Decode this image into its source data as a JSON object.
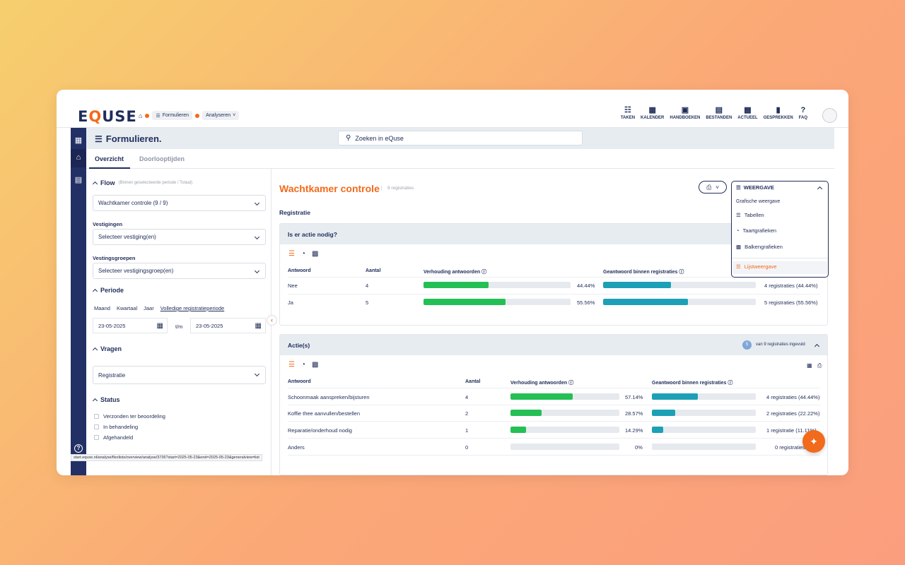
{
  "brand": {
    "logo_left": "E",
    "logo_q": "Q",
    "logo_right": "USE"
  },
  "breadcrumb": {
    "home_icon": "home-icon",
    "formulieren": "Formulieren",
    "analyseren": "Analyseren"
  },
  "topnav": [
    {
      "label": "TAKEN",
      "icon": "clipboard-icon"
    },
    {
      "label": "KALENDER",
      "icon": "calendar-icon"
    },
    {
      "label": "HANDBOEKEN",
      "icon": "book-icon"
    },
    {
      "label": "BESTANDEN",
      "icon": "archive-icon"
    },
    {
      "label": "ACTUEEL",
      "icon": "news-icon"
    },
    {
      "label": "GESPREKKEN",
      "icon": "chat-icon"
    },
    {
      "label": "FAQ",
      "icon": "question-icon"
    }
  ],
  "header": {
    "title": "Formulieren.",
    "search_placeholder": "Zoeken in eQuse"
  },
  "tabs": [
    "Overzicht",
    "Doorlooptijden"
  ],
  "filters": {
    "flow_title": "Flow",
    "flow_sub": "(Binnen geselecteerde periode / Totaal)",
    "flow_value": "Wachtkamer controle (9 / 9)",
    "vestigingen_label": "Vestigingen",
    "vestigingen_value": "Selecteer vestiging(en)",
    "groepen_label": "Vestingsgroepen",
    "groepen_value": "Selecteer vestigingsgroep(en)",
    "periode_title": "Periode",
    "periode_opts": [
      "Maand",
      "Kwartaal",
      "Jaar",
      "Volledige registratieperiode"
    ],
    "date_from": "23-05-2025",
    "date_sep": "t/m",
    "date_to": "23-05-2025",
    "vragen_title": "Vragen",
    "vragen_value": "Registratie",
    "status_title": "Status",
    "status_opts": [
      "Verzonden ter beoordeling",
      "In behandeling",
      "Afgehandeld"
    ]
  },
  "statusbar": "start.equse.nl/analyse/flexlists/overview/analyse/3736?start=2025-05-23&end=2025-05-23&generalview=list",
  "main": {
    "title": "Wachtkamer controle",
    "count": "9 registraties",
    "section": "Registratie",
    "weergave_label": "WEERGAVE",
    "dropdown": {
      "heading": "Grafische weergave",
      "items": [
        "Tabellen",
        "Taartgrafieken",
        "Balkengrafieken",
        "Lijstweergave"
      ]
    },
    "q1": {
      "title": "Is er actie nodig?",
      "headers": [
        "Antwoord",
        "Aantal",
        "Verhouding antwoorden",
        "Geantwoord binnen registraties"
      ],
      "rows": [
        {
          "answer": "Nee",
          "count": "4",
          "pct": "44.44%",
          "ratio": 0.4444,
          "reg": "4 registraties (44.44%)"
        },
        {
          "answer": "Ja",
          "count": "5",
          "pct": "55.56%",
          "ratio": 0.5556,
          "reg": "5 registraties (55.56%)"
        }
      ]
    },
    "q2": {
      "title": "Actie(s)",
      "badge": "5",
      "badge_text": "van 9 registraties ingevuld",
      "headers": [
        "Antwoord",
        "Aantal",
        "Verhouding antwoorden",
        "Geantwoord binnen registraties"
      ],
      "rows": [
        {
          "answer": "Schoonmaak aanspreken/bijsturen",
          "count": "4",
          "pct": "57.14%",
          "ratio": 0.5714,
          "reg_ratio": 0.4444,
          "reg": "4 registraties (44.44%)"
        },
        {
          "answer": "Koffie thee aanvullen/bestellen",
          "count": "2",
          "pct": "28.57%",
          "ratio": 0.2857,
          "reg_ratio": 0.2222,
          "reg": "2 registraties (22.22%)"
        },
        {
          "answer": "Reparatie/onderhoud nodig",
          "count": "1",
          "pct": "14.29%",
          "ratio": 0.1429,
          "reg_ratio": 0.1111,
          "reg": "1 registratie (11.11%)"
        },
        {
          "answer": "Anders",
          "count": "0",
          "pct": "0%",
          "ratio": 0,
          "reg_ratio": 0,
          "reg": "0 registraties"
        }
      ]
    }
  },
  "colors": {
    "accent": "#f26a1b",
    "navy": "#1f2d5a",
    "green": "#24bf55",
    "teal": "#1ca0b6"
  }
}
